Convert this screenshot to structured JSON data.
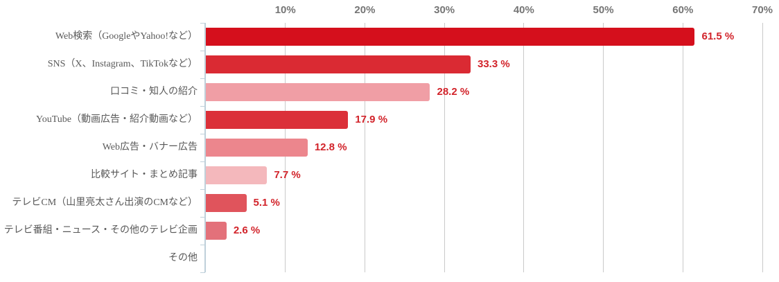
{
  "chart_data": {
    "type": "bar",
    "orientation": "horizontal",
    "title": "",
    "xlabel": "",
    "ylabel": "",
    "categories": [
      "Web検索（GoogleやYahoo!など）",
      "SNS（X、Instagram、TikTokなど）",
      "口コミ・知人の紹介",
      "YouTube（動画広告・紹介動画など）",
      "Web広告・バナー広告",
      "比較サイト・まとめ記事",
      "テレビCM（山里亮太さん出演のCMなど）",
      "テレビ番組・ニュース・その他のテレビ企画",
      "その他"
    ],
    "values": [
      61.5,
      33.3,
      28.2,
      17.9,
      12.8,
      7.7,
      5.1,
      2.6,
      0
    ],
    "value_labels": [
      "61.5 %",
      "33.3 %",
      "28.2 %",
      "17.9 %",
      "12.8 %",
      "7.7 %",
      "5.1 %",
      "2.6 %",
      ""
    ],
    "bar_colors": [
      "#D50F1C",
      "#DA2A33",
      "#F09EA5",
      "#DB3039",
      "#EC868D",
      "#F4B8BC",
      "#E0545C",
      "#E3717A",
      "#FFFFFF"
    ],
    "xlim": [
      0,
      70
    ],
    "x_ticks": [
      10,
      20,
      30,
      40,
      50,
      60,
      70
    ],
    "x_tick_labels": [
      "10%",
      "20%",
      "30%",
      "40%",
      "50%",
      "60%",
      "70%"
    ],
    "grid": true,
    "legend": null,
    "colors": {
      "value_label": "#D2232A",
      "tick_label": "#757575",
      "category_label": "#595959",
      "gridline": "#C9C9C9",
      "axis_line": "#BFD0DA",
      "background": "#FFFFFF"
    }
  }
}
